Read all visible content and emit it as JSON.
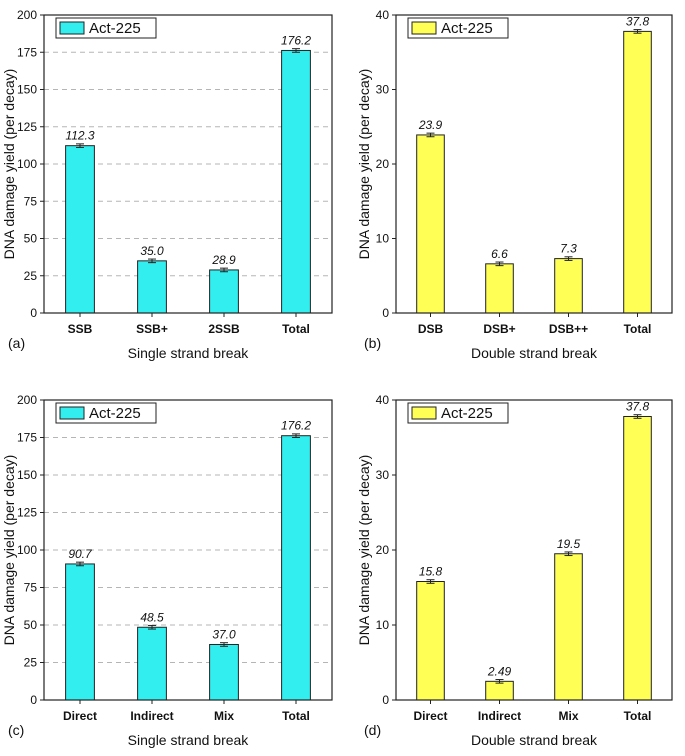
{
  "chart_data": [
    {
      "type": "bar",
      "panel_label": "(a)",
      "categories": [
        "SSB",
        "SSB+",
        "2SSB",
        "Total"
      ],
      "series": [
        {
          "name": "Act-225",
          "values": [
            112.3,
            35.0,
            28.9,
            176.2
          ]
        }
      ],
      "data_labels": [
        "112.3",
        "35.0",
        "28.9",
        "176.2"
      ],
      "xlabel": "Single strand break",
      "ylabel": "DNA damage yield (per decay)",
      "ylim": [
        0,
        200
      ],
      "yticks": [
        "0",
        "25",
        "50",
        "75",
        "100",
        "125",
        "150",
        "175",
        "200"
      ],
      "grid": "horizontal dashed",
      "legend_position": "top-left",
      "error_bars": true,
      "color": "#33eeee"
    },
    {
      "type": "bar",
      "panel_label": "(b)",
      "categories": [
        "DSB",
        "DSB+",
        "DSB++",
        "Total"
      ],
      "series": [
        {
          "name": "Act-225",
          "values": [
            23.9,
            6.6,
            7.3,
            37.8
          ]
        }
      ],
      "data_labels": [
        "23.9",
        "6.6",
        "7.3",
        "37.8"
      ],
      "xlabel": "Double strand break",
      "ylabel": "DNA damage yield (per decay)",
      "ylim": [
        0,
        40
      ],
      "yticks": [
        "0",
        "10",
        "20",
        "30",
        "40"
      ],
      "grid": "none",
      "legend_position": "top-left",
      "error_bars": true,
      "color": "#ffff55"
    },
    {
      "type": "bar",
      "panel_label": "(c)",
      "categories": [
        "Direct",
        "Indirect",
        "Mix",
        "Total"
      ],
      "series": [
        {
          "name": "Act-225",
          "values": [
            90.7,
            48.5,
            37.0,
            176.2
          ]
        }
      ],
      "data_labels": [
        "90.7",
        "48.5",
        "37.0",
        "176.2"
      ],
      "xlabel": "Single strand break",
      "ylabel": "DNA damage yield (per decay)",
      "ylim": [
        0,
        200
      ],
      "yticks": [
        "0",
        "25",
        "50",
        "75",
        "100",
        "125",
        "150",
        "175",
        "200"
      ],
      "grid": "horizontal dashed",
      "legend_position": "top-left",
      "error_bars": true,
      "color": "#33eeee"
    },
    {
      "type": "bar",
      "panel_label": "(d)",
      "categories": [
        "Direct",
        "Indirect",
        "Mix",
        "Total"
      ],
      "series": [
        {
          "name": "Act-225",
          "values": [
            15.8,
            2.49,
            19.5,
            37.8
          ]
        }
      ],
      "data_labels": [
        "15.8",
        "2.49",
        "19.5",
        "37.8"
      ],
      "xlabel": "Double strand break",
      "ylabel": "DNA damage yield (per decay)",
      "ylim": [
        0,
        40
      ],
      "yticks": [
        "0",
        "10",
        "20",
        "30",
        "40"
      ],
      "grid": "none",
      "legend_position": "top-left",
      "error_bars": true,
      "color": "#ffff55"
    }
  ]
}
